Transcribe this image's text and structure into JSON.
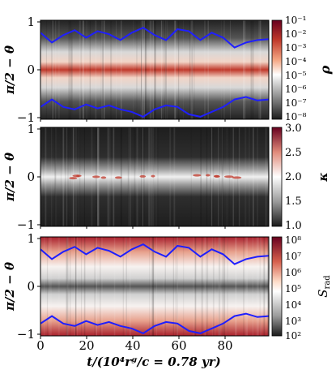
{
  "figure": {
    "xlabel": "t/(10⁴rᵍ/c = 0.78 yr)",
    "x_ticks": [
      "0",
      "20",
      "40",
      "60",
      "80"
    ],
    "colors": {
      "axis": "#000000",
      "contour": "#1f1fff",
      "hot": "#b2182b",
      "cold": "#1a1a1a"
    }
  },
  "chart_data": [
    {
      "type": "heatmap",
      "panel": "density",
      "ylabel": "π/2 − θ",
      "y_ticks": [
        "1",
        "0",
        "−1"
      ],
      "xlim": [
        0,
        100
      ],
      "ylim": [
        -1,
        1
      ],
      "colorbar": {
        "label": "ρ",
        "scale": "log",
        "ticks": [
          "10⁻¹",
          "10⁻²",
          "10⁻³",
          "10⁻⁴",
          "10⁻⁵",
          "10⁻⁶",
          "10⁻⁷",
          "10⁻⁸"
        ],
        "range": [
          1e-08,
          0.1
        ]
      },
      "contour": {
        "x": [
          0,
          5,
          10,
          15,
          20,
          25,
          30,
          35,
          40,
          45,
          50,
          55,
          60,
          65,
          70,
          75,
          80,
          85,
          90,
          95,
          100
        ],
        "upper": [
          0.75,
          0.55,
          0.7,
          0.8,
          0.65,
          0.78,
          0.72,
          0.6,
          0.75,
          0.85,
          0.7,
          0.6,
          0.82,
          0.78,
          0.6,
          0.75,
          0.65,
          0.45,
          0.55,
          0.6,
          0.62
        ],
        "lower": [
          -0.75,
          -0.6,
          -0.75,
          -0.8,
          -0.7,
          -0.78,
          -0.72,
          -0.8,
          -0.85,
          -0.95,
          -0.8,
          -0.72,
          -0.75,
          -0.9,
          -0.95,
          -0.85,
          -0.75,
          -0.6,
          -0.55,
          -0.62,
          -0.6
        ]
      }
    },
    {
      "type": "heatmap",
      "panel": "adiabatic-index",
      "ylabel": "π/2 − θ",
      "y_ticks": [
        "1",
        "0",
        "−1"
      ],
      "xlim": [
        0,
        100
      ],
      "ylim": [
        -1,
        1
      ],
      "colorbar": {
        "label": "κ",
        "scale": "linear",
        "ticks": [
          "3.0",
          "2.5",
          "2.0",
          "1.5",
          "1.0"
        ],
        "range": [
          1.0,
          3.0
        ]
      }
    },
    {
      "type": "heatmap",
      "panel": "radiation-entropy",
      "ylabel": "π/2 − θ",
      "y_ticks": [
        "1",
        "0",
        "−1"
      ],
      "xlim": [
        0,
        100
      ],
      "ylim": [
        -1,
        1
      ],
      "colorbar": {
        "label": "S_rad",
        "label_main": "S",
        "label_sub": "rad",
        "scale": "log",
        "ticks": [
          "10⁸",
          "10⁷",
          "10⁶",
          "10⁵",
          "10⁴",
          "10³",
          "10²"
        ],
        "range": [
          100,
          100000000
        ]
      },
      "contour": {
        "x": [
          0,
          5,
          10,
          15,
          20,
          25,
          30,
          35,
          40,
          45,
          50,
          55,
          60,
          65,
          70,
          75,
          80,
          85,
          90,
          95,
          100
        ],
        "upper": [
          0.75,
          0.55,
          0.7,
          0.8,
          0.65,
          0.78,
          0.72,
          0.6,
          0.75,
          0.85,
          0.7,
          0.6,
          0.82,
          0.78,
          0.6,
          0.75,
          0.65,
          0.45,
          0.55,
          0.6,
          0.62
        ],
        "lower": [
          -0.75,
          -0.6,
          -0.75,
          -0.8,
          -0.7,
          -0.78,
          -0.72,
          -0.8,
          -0.85,
          -0.95,
          -0.8,
          -0.72,
          -0.75,
          -0.9,
          -0.95,
          -0.85,
          -0.75,
          -0.6,
          -0.55,
          -0.62,
          -0.6
        ]
      }
    }
  ]
}
